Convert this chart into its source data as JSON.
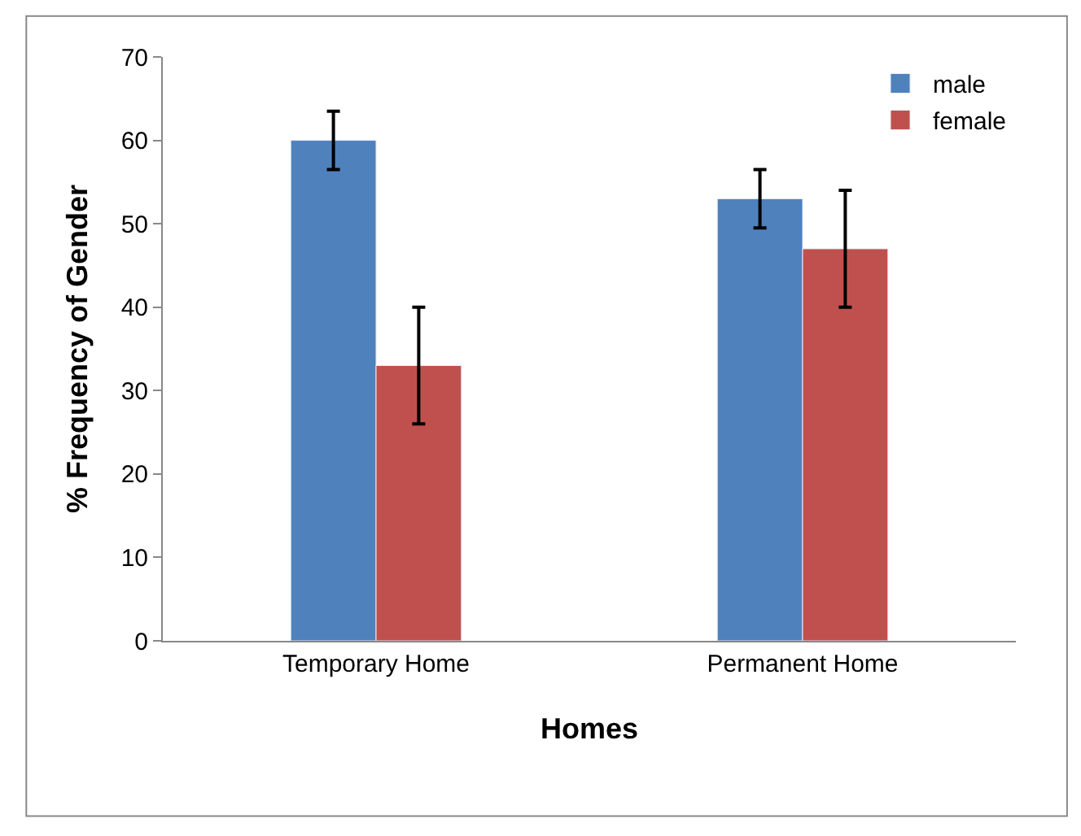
{
  "chart_data": {
    "type": "bar",
    "xlabel": "Homes",
    "ylabel": "% Frequency of Gender",
    "categories": [
      "Temporary Home",
      "Permanent Home"
    ],
    "series": [
      {
        "name": "male",
        "color": "#4f81bd",
        "values": [
          60,
          53
        ],
        "errors": [
          3.5,
          3.5
        ]
      },
      {
        "name": "female",
        "color": "#c0504d",
        "values": [
          33,
          47
        ],
        "errors": [
          7,
          7
        ]
      }
    ],
    "ylim": [
      0,
      70
    ],
    "yticks": [
      0,
      10,
      20,
      30,
      40,
      50,
      60,
      70
    ],
    "grid": false,
    "legend": "top right"
  }
}
